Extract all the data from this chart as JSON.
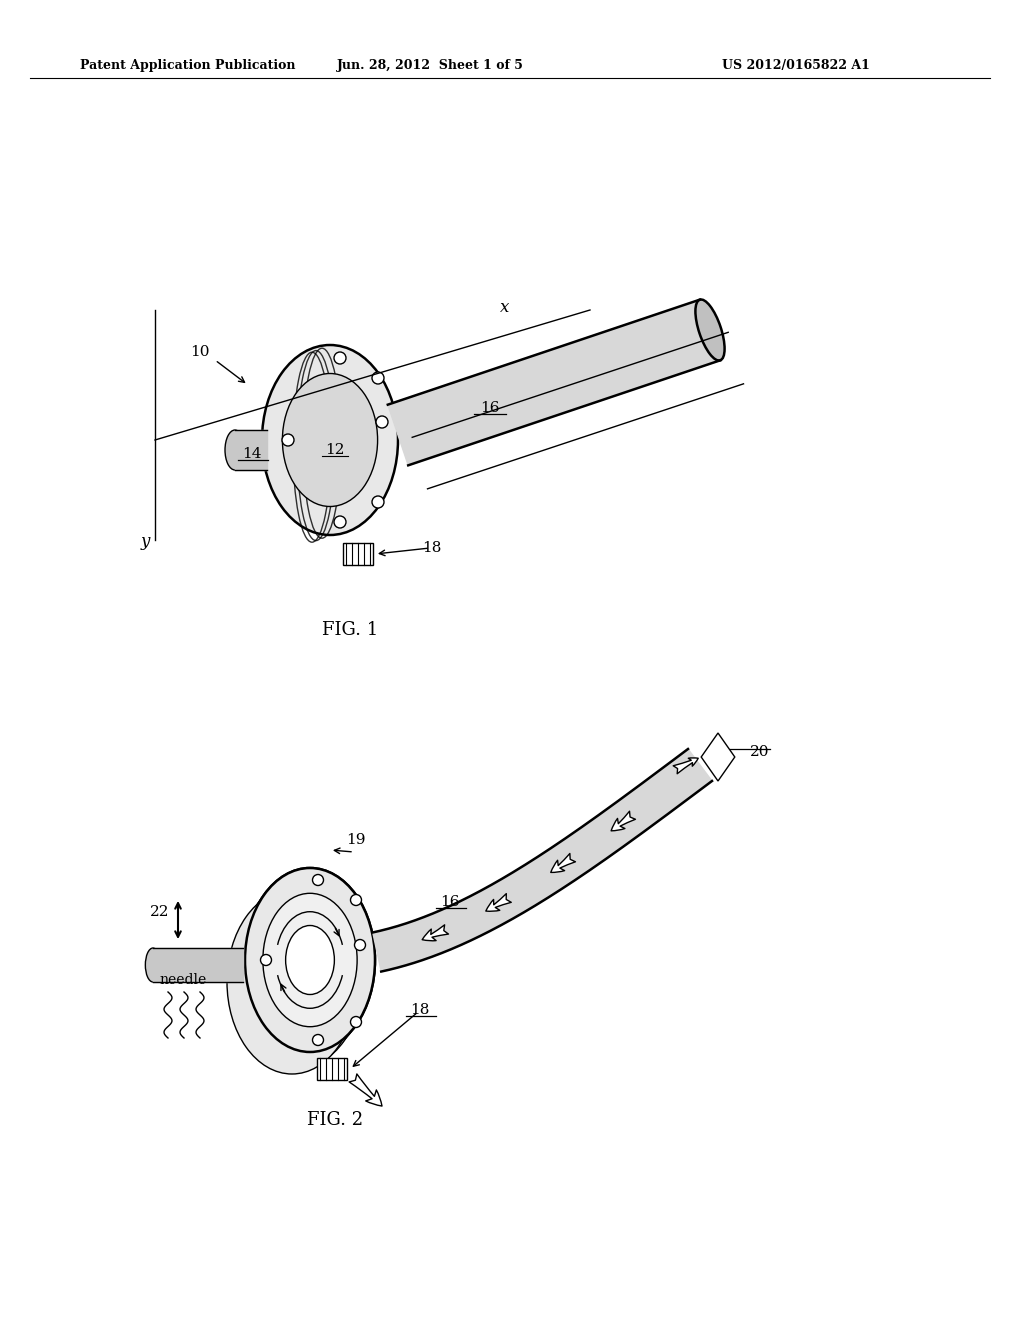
{
  "header_left": "Patent Application Publication",
  "header_center": "Jun. 28, 2012  Sheet 1 of 5",
  "header_right": "US 2012/0165822 A1",
  "fig1_caption": "FIG. 1",
  "fig2_caption": "FIG. 2",
  "background_color": "#ffffff",
  "line_color": "#000000",
  "lw_main": 1.8,
  "lw_thin": 1.0,
  "lw_thick": 2.2
}
